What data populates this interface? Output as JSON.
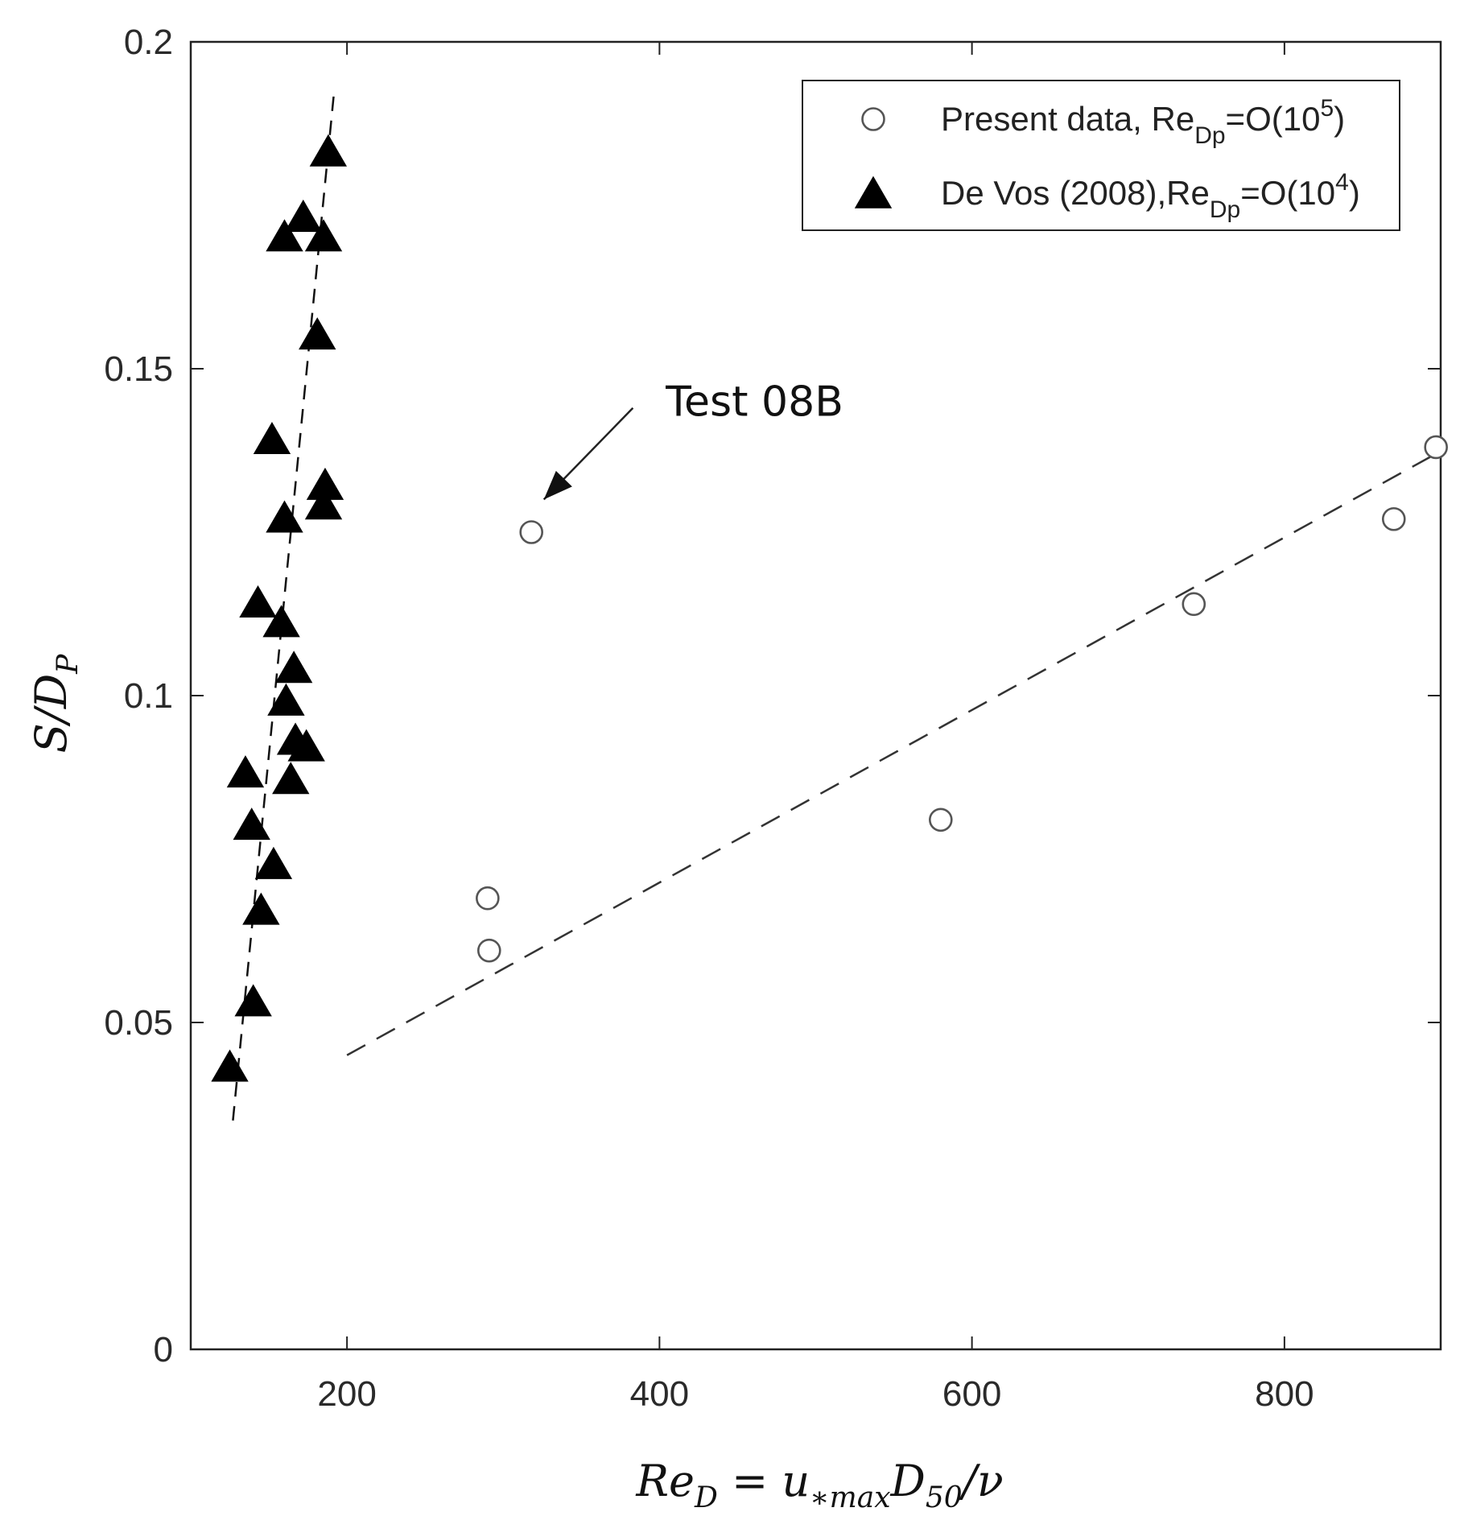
{
  "chart_data": {
    "type": "scatter",
    "xlim": [
      100,
      900
    ],
    "ylim": [
      0,
      0.2
    ],
    "x_ticks": [
      200,
      400,
      600,
      800
    ],
    "x_tick_labels": [
      "200",
      "400",
      "600",
      "800"
    ],
    "y_ticks": [
      0,
      0.05,
      0.1,
      0.15,
      0.2
    ],
    "y_tick_labels": [
      "0",
      "0.05",
      "0.1",
      "0.15",
      "0.2"
    ],
    "grid": false,
    "legend_position": "top-right",
    "xlabel": {
      "main": "Re",
      "main_sub": "D",
      "equals": " = ",
      "var": "u",
      "var_sub": "∗max",
      "d": "D",
      "d_sub": "50",
      "tail": "/ν"
    },
    "ylabel": {
      "main": "S/D",
      "sub": "P"
    },
    "series": [
      {
        "name": "Present data, Re_Dp=O(10^5)",
        "legend": {
          "prefix": "Present data, Re",
          "sub": "Dp",
          "mid": "=O(10",
          "sup": "5",
          "suffix": ")"
        },
        "marker": "open-circle",
        "color": "#555555",
        "points": [
          {
            "x": 290,
            "y": 0.069
          },
          {
            "x": 291,
            "y": 0.061
          },
          {
            "x": 318,
            "y": 0.125
          },
          {
            "x": 580,
            "y": 0.081
          },
          {
            "x": 742,
            "y": 0.114
          },
          {
            "x": 870,
            "y": 0.127
          },
          {
            "x": 897,
            "y": 0.138
          }
        ],
        "fit_line": [
          {
            "x": 200,
            "y": 0.045
          },
          {
            "x": 897,
            "y": 0.137
          }
        ]
      },
      {
        "name": "De Vos (2008),Re_Dp=O(10^4)",
        "legend": {
          "prefix": "De Vos (2008),Re",
          "sub": "Dp",
          "mid": "=O(10",
          "sup": "4",
          "suffix": ")"
        },
        "marker": "filled-triangle",
        "color": "#000000",
        "points": [
          {
            "x": 125,
            "y": 0.043
          },
          {
            "x": 140,
            "y": 0.053
          },
          {
            "x": 135,
            "y": 0.088
          },
          {
            "x": 139,
            "y": 0.08
          },
          {
            "x": 143,
            "y": 0.114
          },
          {
            "x": 145,
            "y": 0.067
          },
          {
            "x": 152,
            "y": 0.139
          },
          {
            "x": 153,
            "y": 0.074
          },
          {
            "x": 158,
            "y": 0.111
          },
          {
            "x": 160,
            "y": 0.17
          },
          {
            "x": 160,
            "y": 0.127
          },
          {
            "x": 161,
            "y": 0.099
          },
          {
            "x": 164,
            "y": 0.087
          },
          {
            "x": 166,
            "y": 0.104
          },
          {
            "x": 167,
            "y": 0.093
          },
          {
            "x": 172,
            "y": 0.173
          },
          {
            "x": 174,
            "y": 0.092
          },
          {
            "x": 181,
            "y": 0.155
          },
          {
            "x": 185,
            "y": 0.17
          },
          {
            "x": 185,
            "y": 0.129
          },
          {
            "x": 186,
            "y": 0.132
          },
          {
            "x": 188,
            "y": 0.183
          }
        ],
        "fit_line": [
          {
            "x": 127,
            "y": 0.035
          },
          {
            "x": 192,
            "y": 0.193
          }
        ]
      }
    ],
    "annotations": [
      {
        "text": "Test 08B",
        "text_at": {
          "x": 404,
          "y": 0.145
        },
        "arrow_from": {
          "x": 383,
          "y": 0.144
        },
        "arrow_to": {
          "x": 326,
          "y": 0.13
        }
      }
    ]
  }
}
